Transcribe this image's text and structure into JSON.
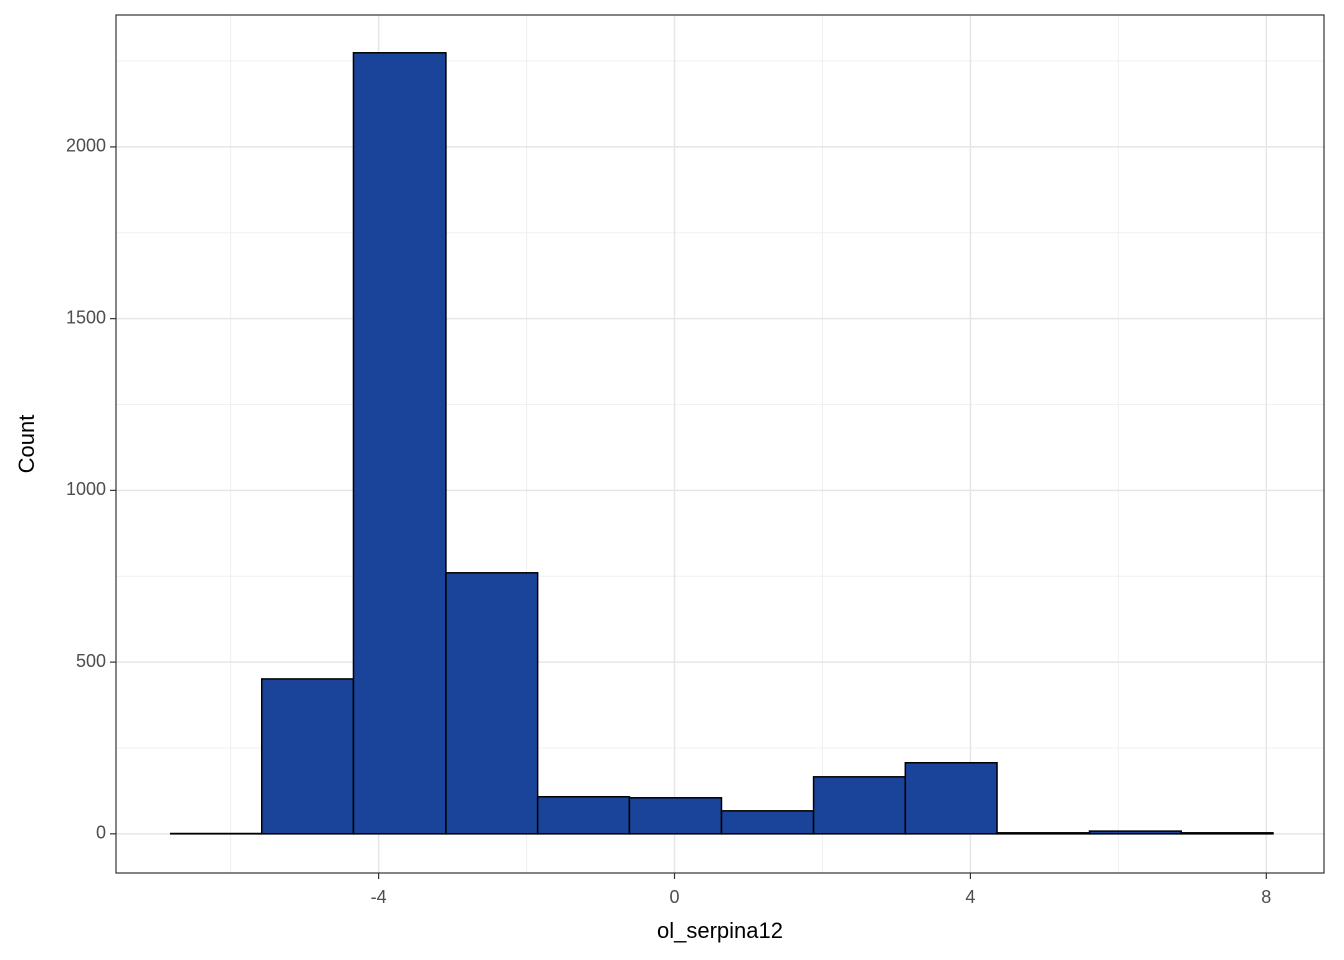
{
  "chart_data": {
    "type": "histogram",
    "x_label": "ol_serpina12",
    "y_label": "Count",
    "bins": [
      -6.81,
      -5.58,
      -4.34,
      -3.09,
      -1.85,
      -0.61,
      0.635,
      1.88,
      3.12,
      4.36,
      5.61,
      6.85,
      8.09
    ],
    "counts": [
      1,
      451,
      2274,
      760,
      108,
      105,
      67,
      166,
      207,
      3,
      8,
      3
    ],
    "color": "#1a4499",
    "edge_color": "#000000",
    "xlim": [
      -7.55,
      8.78
    ],
    "xticks": [
      -4,
      0,
      4,
      8
    ],
    "minor_xticks": [
      -6,
      -2,
      2,
      6
    ],
    "ylim": [
      -114,
      2384
    ],
    "yticks": [
      0,
      500,
      1000,
      1500,
      2000
    ],
    "minor_yticks": [
      250,
      750,
      1250,
      1750,
      2250
    ],
    "grid": true
  }
}
